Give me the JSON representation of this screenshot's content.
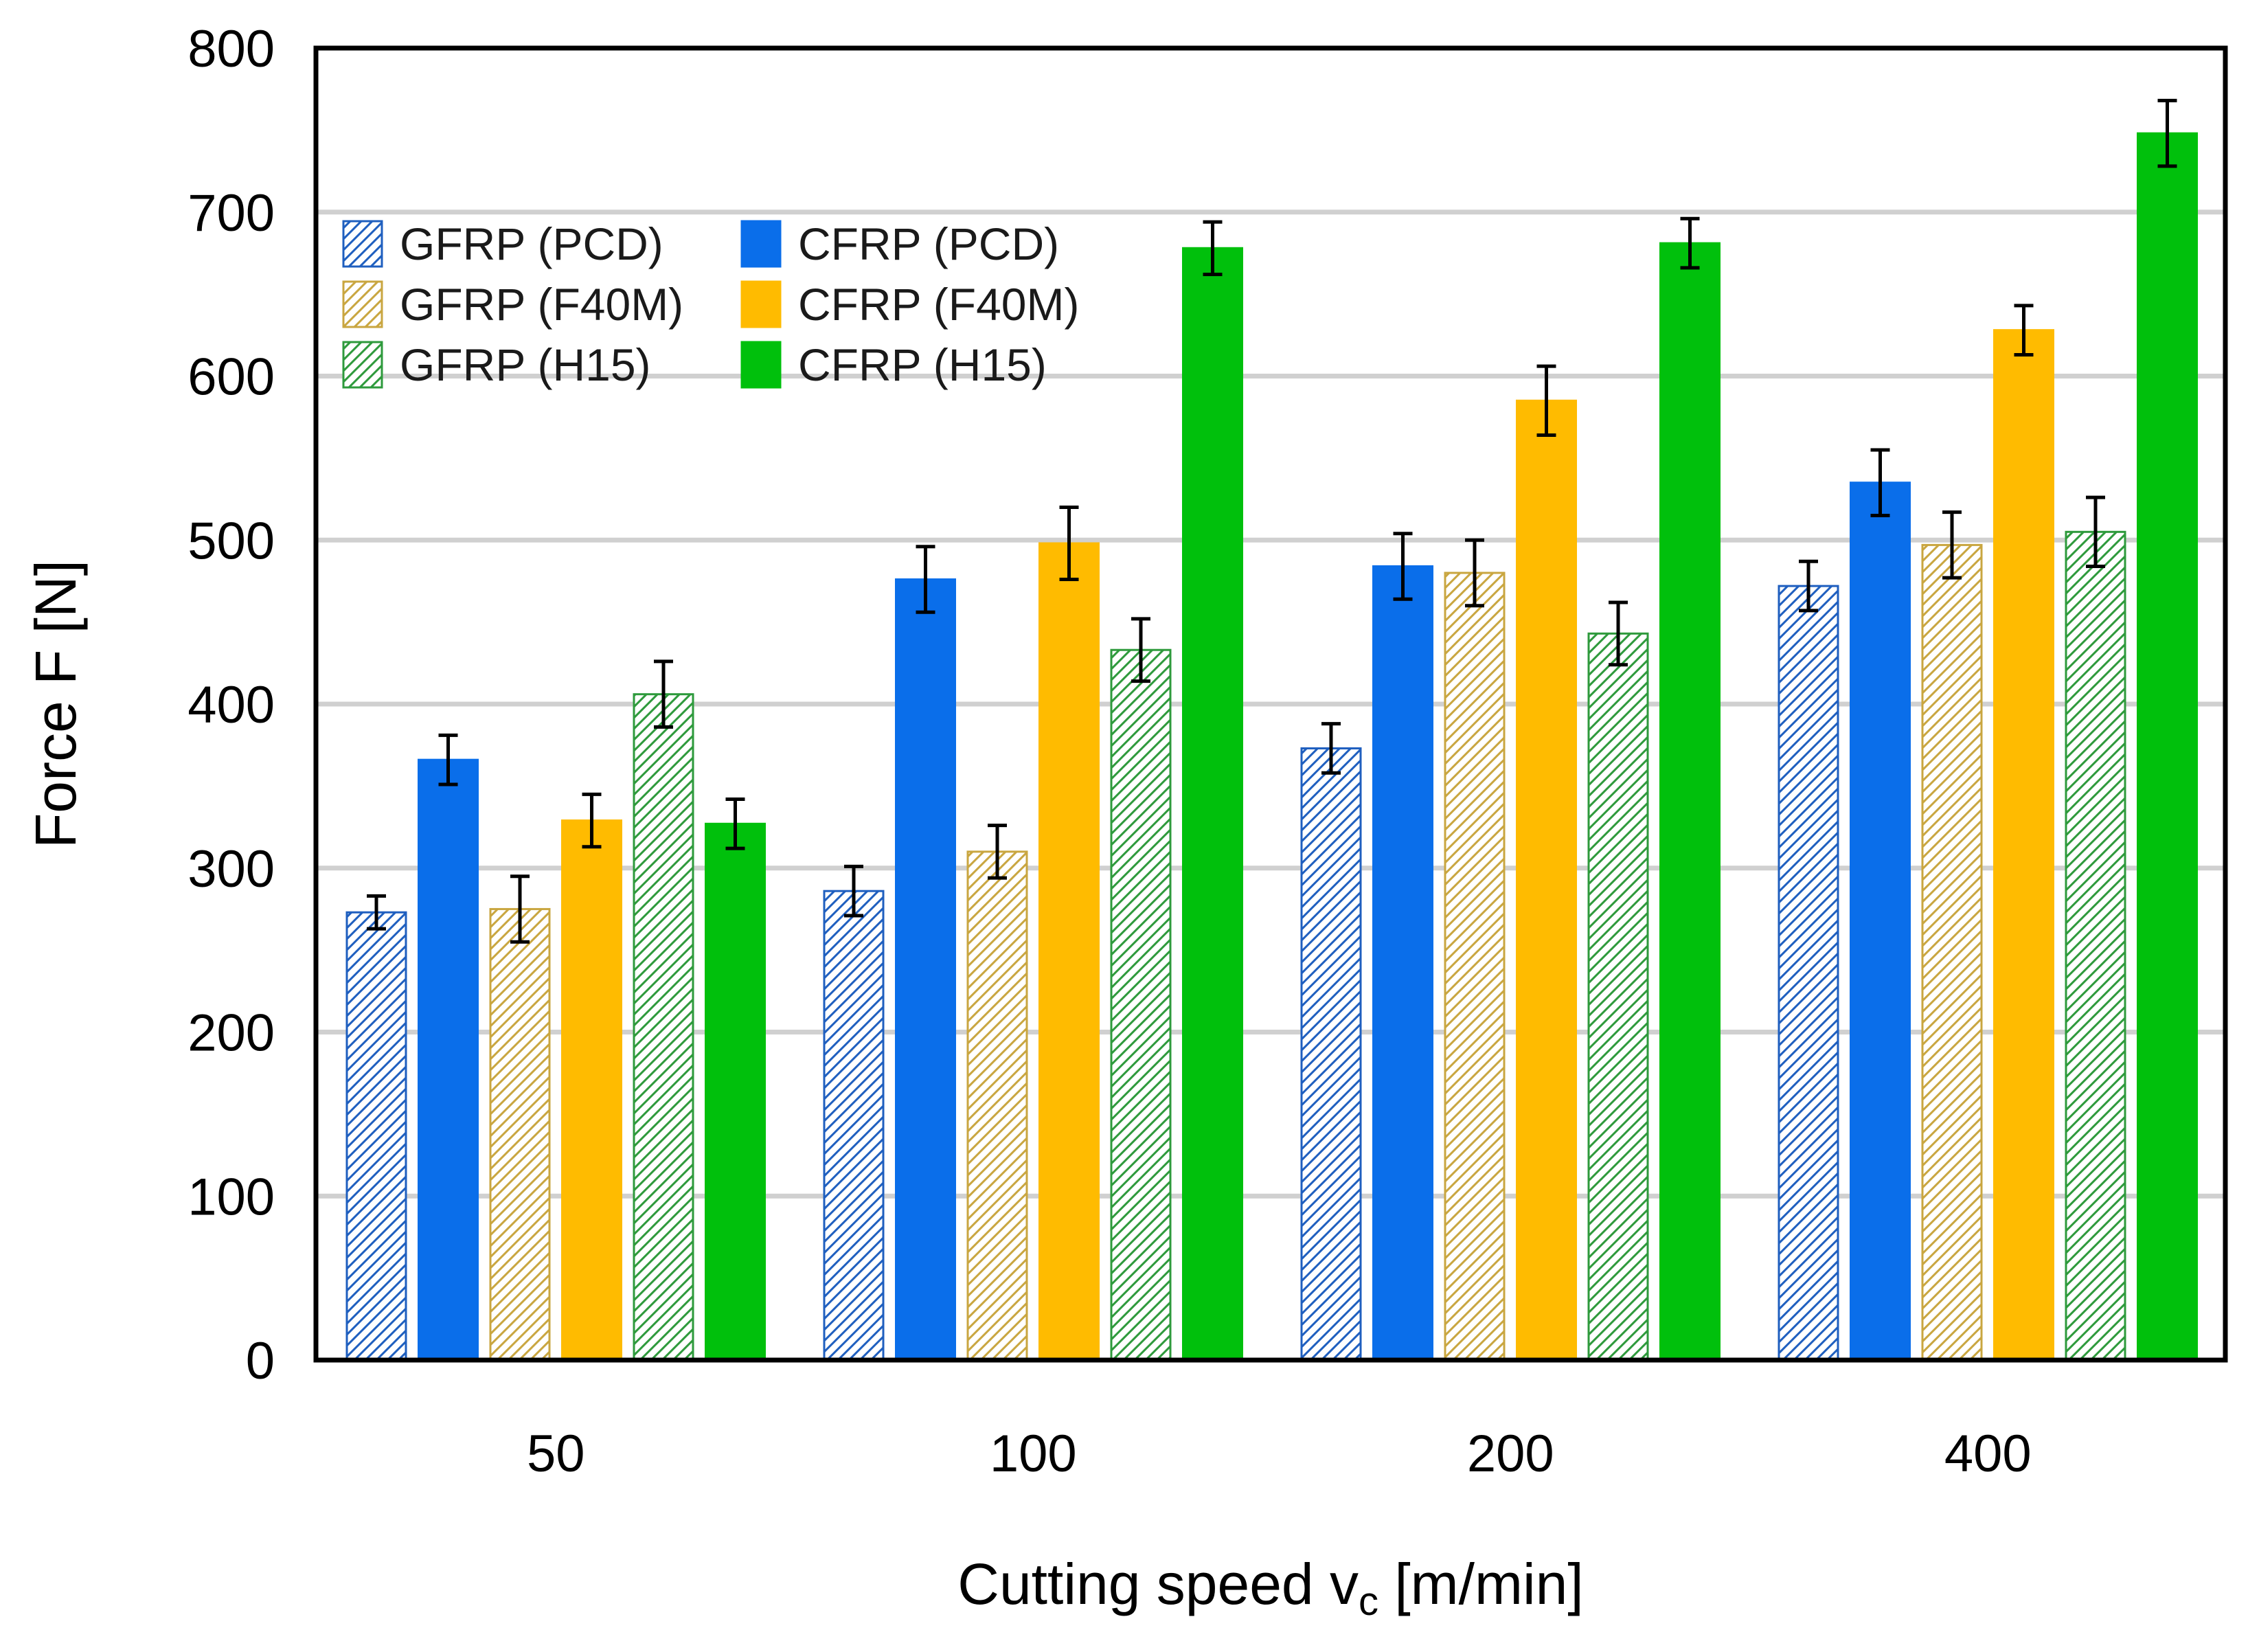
{
  "chart_data": {
    "type": "bar",
    "categories": [
      "50",
      "100",
      "200",
      "400"
    ],
    "xlabel_main": "Cutting speed v",
    "xlabel_sub": "c",
    "xlabel_unit": " [m/min]",
    "ylabel": "Force F [N]",
    "ylim": [
      0,
      800
    ],
    "yticks": [
      "0",
      "100",
      "200",
      "300",
      "400",
      "500",
      "600",
      "700",
      "800"
    ],
    "grid": true,
    "legend_position": "top-left",
    "series": [
      {
        "name": "GFRP (PCD)",
        "color": "#1f5fbf",
        "fill": "hatch",
        "values": [
          273,
          286,
          373,
          472
        ],
        "errors": [
          10,
          15,
          15,
          15
        ]
      },
      {
        "name": "CFRP (PCD)",
        "color": "#0a6eea",
        "fill": "solid",
        "values": [
          366,
          476,
          484,
          535
        ],
        "errors": [
          15,
          20,
          20,
          20
        ]
      },
      {
        "name": "GFRP (F40M)",
        "color": "#c9a640",
        "fill": "hatch",
        "values": [
          275,
          310,
          480,
          497
        ],
        "errors": [
          20,
          16,
          20,
          20
        ]
      },
      {
        "name": "CFRP (F40M)",
        "color": "#ffbb00",
        "fill": "solid",
        "values": [
          329,
          498,
          585,
          628
        ],
        "errors": [
          16,
          22,
          21,
          15
        ]
      },
      {
        "name": "GFRP (H15)",
        "color": "#2e9a3c",
        "fill": "hatch",
        "values": [
          406,
          433,
          443,
          505
        ],
        "errors": [
          20,
          19,
          19,
          21
        ]
      },
      {
        "name": "CFRP (H15)",
        "color": "#00c00c",
        "fill": "solid",
        "values": [
          327,
          678,
          681,
          748
        ],
        "errors": [
          15,
          16,
          15,
          20
        ]
      }
    ]
  }
}
